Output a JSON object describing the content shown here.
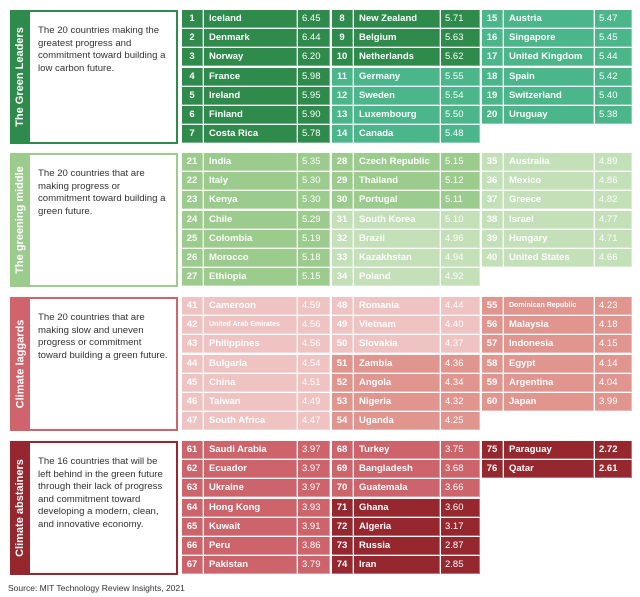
{
  "sections": [
    {
      "label": "The Green Leaders",
      "description": "The 20 countries making the greatest progress and commitment toward building a low carbon future.",
      "accent": "#2e8b4c",
      "tier_colors": [
        "#2e8b4c",
        "#4bb68a"
      ],
      "entries": [
        [
          "1",
          "Iceland",
          "6.45",
          0
        ],
        [
          "2",
          "Denmark",
          "6.44",
          0
        ],
        [
          "3",
          "Norway",
          "6.20",
          0
        ],
        [
          "4",
          "France",
          "5.98",
          0
        ],
        [
          "5",
          "Ireland",
          "5.95",
          0
        ],
        [
          "6",
          "Finland",
          "5.90",
          0
        ],
        [
          "7",
          "Costa Rica",
          "5.78",
          0
        ],
        [
          "8",
          "New Zealand",
          "5.71",
          0
        ],
        [
          "9",
          "Belgium",
          "5.63",
          0
        ],
        [
          "10",
          "Netherlands",
          "5.62",
          0
        ],
        [
          "11",
          "Germany",
          "5.55",
          1
        ],
        [
          "12",
          "Sweden",
          "5.54",
          1
        ],
        [
          "13",
          "Luxembourg",
          "5.50",
          1
        ],
        [
          "14",
          "Canada",
          "5.48",
          1
        ],
        [
          "15",
          "Austria",
          "5.47",
          1
        ],
        [
          "16",
          "Singapore",
          "5.45",
          1
        ],
        [
          "17",
          "United Kingdom",
          "5.44",
          1
        ],
        [
          "18",
          "Spain",
          "5.42",
          1
        ],
        [
          "19",
          "Switzerland",
          "5.40",
          1
        ],
        [
          "20",
          "Uruguay",
          "5.38",
          1
        ]
      ]
    },
    {
      "label": "The greening middle",
      "description": "The 20 countries that are making progress or commitment toward building a green future.",
      "accent": "#9ccb8e",
      "tier_colors": [
        "#9ccb8e",
        "#c4e0b9"
      ],
      "entries": [
        [
          "21",
          "India",
          "5.35",
          0
        ],
        [
          "22",
          "Italy",
          "5.30",
          0
        ],
        [
          "23",
          "Kenya",
          "5.30",
          0
        ],
        [
          "24",
          "Chile",
          "5.29",
          0
        ],
        [
          "25",
          "Colombia",
          "5.19",
          0
        ],
        [
          "26",
          "Morocco",
          "5.18",
          0
        ],
        [
          "27",
          "Ethiopia",
          "5.15",
          0
        ],
        [
          "28",
          "Czech Republic",
          "5.15",
          0
        ],
        [
          "29",
          "Thailand",
          "5.12",
          0
        ],
        [
          "30",
          "Portugal",
          "5.11",
          0
        ],
        [
          "31",
          "South Korea",
          "5.10",
          1
        ],
        [
          "32",
          "Brazil",
          "4.96",
          1
        ],
        [
          "33",
          "Kazakhstan",
          "4.94",
          1
        ],
        [
          "34",
          "Poland",
          "4.92",
          1
        ],
        [
          "35",
          "Australia",
          "4.89",
          1
        ],
        [
          "36",
          "Mexico",
          "4.86",
          1
        ],
        [
          "37",
          "Greece",
          "4.82",
          1
        ],
        [
          "38",
          "Israel",
          "4.77",
          1
        ],
        [
          "39",
          "Hungary",
          "4.71",
          1
        ],
        [
          "40",
          "United States",
          "4.66",
          1
        ]
      ]
    },
    {
      "label": "Climate laggards",
      "description": "The 20 countries that are  making slow and uneven progress or commitment toward building a green future.",
      "accent": "#d0646c",
      "tier_colors": [
        "#efc3c2",
        "#e0958f"
      ],
      "entries": [
        [
          "41",
          "Cameroon",
          "4.59",
          0
        ],
        [
          "42",
          "United Arab Emirates",
          "4.56",
          0
        ],
        [
          "43",
          "Philippines",
          "4.56",
          0
        ],
        [
          "44",
          "Bulgaria",
          "4.54",
          0
        ],
        [
          "45",
          "China",
          "4.51",
          0
        ],
        [
          "46",
          "Taiwan",
          "4.49",
          0
        ],
        [
          "47",
          "South Africa",
          "4.47",
          0
        ],
        [
          "48",
          "Romania",
          "4.44",
          0
        ],
        [
          "49",
          "Vietnam",
          "4.40",
          0
        ],
        [
          "50",
          "Slovakia",
          "4.37",
          0
        ],
        [
          "51",
          "Zambia",
          "4.36",
          1
        ],
        [
          "52",
          "Angola",
          "4.34",
          1
        ],
        [
          "53",
          "Nigeria",
          "4.32",
          1
        ],
        [
          "54",
          "Uganda",
          "4.25",
          1
        ],
        [
          "55",
          "Dominican Republic",
          "4.23",
          1
        ],
        [
          "56",
          "Malaysia",
          "4.18",
          1
        ],
        [
          "57",
          "Indonesia",
          "4.15",
          1
        ],
        [
          "58",
          "Egypt",
          "4.14",
          1
        ],
        [
          "59",
          "Argentina",
          "4.04",
          1
        ],
        [
          "60",
          "Japan",
          "3.99",
          1
        ]
      ]
    },
    {
      "label": "Climate abstainers",
      "description": "The 16 countries that will be left behind in the green future through their lack of progress and commitment toward developing a modern, clean, and innovative economy.",
      "accent": "#97272f",
      "tier_colors": [
        "#cd646b",
        "#97272f"
      ],
      "entries": [
        [
          "61",
          "Saudi Arabia",
          "3.97",
          0
        ],
        [
          "62",
          "Ecuador",
          "3.97",
          0
        ],
        [
          "63",
          "Ukraine",
          "3.97",
          0
        ],
        [
          "64",
          "Hong Kong",
          "3.93",
          0
        ],
        [
          "65",
          "Kuwait",
          "3.91",
          0
        ],
        [
          "66",
          "Peru",
          "3.86",
          0
        ],
        [
          "67",
          "Pakistan",
          "3.79",
          0
        ],
        [
          "68",
          "Turkey",
          "3.75",
          0
        ],
        [
          "69",
          "Bangladesh",
          "3.68",
          0
        ],
        [
          "70",
          "Guatemala",
          "3.66",
          0
        ],
        [
          "71",
          "Ghana",
          "3.60",
          1
        ],
        [
          "72",
          "Algeria",
          "3.17",
          1
        ],
        [
          "73",
          "Russia",
          "2.87",
          1
        ],
        [
          "74",
          "Iran",
          "2.85",
          1
        ],
        [
          "75",
          "Paraguay",
          "2.72",
          1
        ],
        [
          "76",
          "Qatar",
          "2.61",
          1
        ]
      ]
    }
  ],
  "source": "Source: MIT Technology Review Insights, 2021"
}
